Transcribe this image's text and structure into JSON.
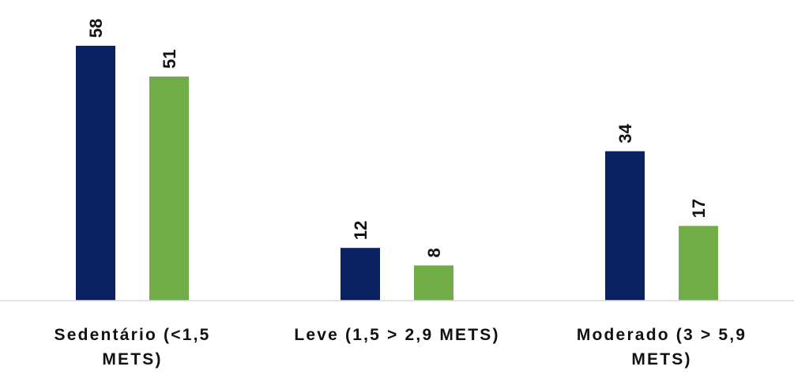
{
  "chart_data": {
    "type": "bar",
    "title": "",
    "xlabel": "",
    "ylabel": "",
    "categories": [
      [
        "Sedentário (<1,5",
        "METS)"
      ],
      [
        "Leve (1,5 > 2,9 METS)"
      ],
      [
        "Moderado (3 > 5,9",
        "METS)"
      ]
    ],
    "series": [
      {
        "color": "#0b2260",
        "values": [
          58,
          12,
          34
        ]
      },
      {
        "color": "#70ad47",
        "values": [
          51,
          8,
          17
        ]
      }
    ],
    "ylim": [
      0,
      58
    ],
    "grid": false,
    "legend": "none"
  }
}
